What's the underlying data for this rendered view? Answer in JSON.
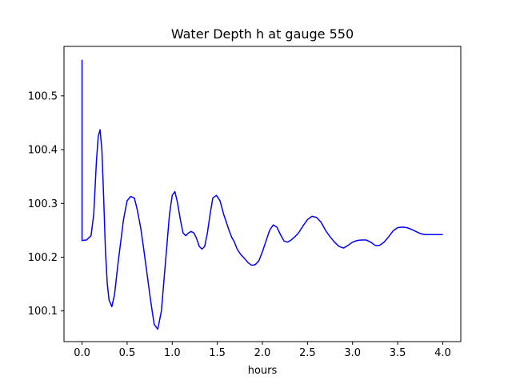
{
  "chart_data": {
    "type": "line",
    "title": "Water Depth h at gauge 550",
    "xlabel": "hours",
    "ylabel": "",
    "xlim": [
      -0.2,
      4.2
    ],
    "ylim": [
      100.043,
      100.592
    ],
    "grid": false,
    "x_ticks": [
      0.0,
      0.5,
      1.0,
      1.5,
      2.0,
      2.5,
      3.0,
      3.5,
      4.0
    ],
    "x_tick_labels": [
      "0.0",
      "0.5",
      "1.0",
      "1.5",
      "2.0",
      "2.5",
      "3.0",
      "3.5",
      "4.0"
    ],
    "y_ticks": [
      100.1,
      100.2,
      100.3,
      100.4,
      100.5
    ],
    "y_tick_labels": [
      "100.1",
      "100.2",
      "100.3",
      "100.4",
      "100.5"
    ],
    "series": [
      {
        "color": "#0000ff",
        "x": [
          0.0,
          0.0,
          0.0,
          0.05,
          0.1,
          0.13,
          0.16,
          0.18,
          0.2,
          0.22,
          0.24,
          0.26,
          0.28,
          0.3,
          0.33,
          0.36,
          0.38,
          0.4,
          0.43,
          0.46,
          0.5,
          0.54,
          0.58,
          0.61,
          0.65,
          0.68,
          0.72,
          0.76,
          0.8,
          0.84,
          0.88,
          0.91,
          0.94,
          0.97,
          1.0,
          1.03,
          1.06,
          1.09,
          1.12,
          1.15,
          1.18,
          1.21,
          1.24,
          1.27,
          1.3,
          1.33,
          1.36,
          1.39,
          1.42,
          1.45,
          1.49,
          1.53,
          1.57,
          1.6,
          1.63,
          1.66,
          1.69,
          1.72,
          1.76,
          1.8,
          1.84,
          1.88,
          1.92,
          1.96,
          2.0,
          2.04,
          2.08,
          2.12,
          2.16,
          2.2,
          2.24,
          2.28,
          2.32,
          2.36,
          2.4,
          2.45,
          2.5,
          2.55,
          2.6,
          2.65,
          2.7,
          2.75,
          2.8,
          2.85,
          2.9,
          2.95,
          3.0,
          3.05,
          3.1,
          3.15,
          3.2,
          3.25,
          3.3,
          3.35,
          3.4,
          3.45,
          3.5,
          3.55,
          3.6,
          3.65,
          3.7,
          3.75,
          3.8,
          3.85,
          3.9,
          3.95,
          4.0
        ],
        "y": [
          100.567,
          100.4,
          100.231,
          100.232,
          100.24,
          100.28,
          100.38,
          100.425,
          100.437,
          100.4,
          100.31,
          100.21,
          100.15,
          100.12,
          100.108,
          100.13,
          100.16,
          100.19,
          100.23,
          100.27,
          100.305,
          100.313,
          100.31,
          100.29,
          100.255,
          100.22,
          100.17,
          100.12,
          100.075,
          100.066,
          100.1,
          100.16,
          100.22,
          100.28,
          100.315,
          100.322,
          100.3,
          100.27,
          100.245,
          100.24,
          100.245,
          100.248,
          100.245,
          100.235,
          100.22,
          100.215,
          100.22,
          100.245,
          100.28,
          100.31,
          100.315,
          100.305,
          100.28,
          100.265,
          100.25,
          100.237,
          100.228,
          100.215,
          100.205,
          100.198,
          100.19,
          100.185,
          100.186,
          100.193,
          100.21,
          100.23,
          100.25,
          100.26,
          100.256,
          100.242,
          100.23,
          100.228,
          100.232,
          100.238,
          100.245,
          100.258,
          100.27,
          100.276,
          100.274,
          100.265,
          100.25,
          100.238,
          100.228,
          100.22,
          100.217,
          100.222,
          100.228,
          100.231,
          100.232,
          100.232,
          100.228,
          100.222,
          100.222,
          100.228,
          100.238,
          100.249,
          100.255,
          100.256,
          100.255,
          100.252,
          100.248,
          100.244,
          100.242,
          100.242,
          100.242,
          100.242,
          100.242
        ]
      }
    ]
  }
}
